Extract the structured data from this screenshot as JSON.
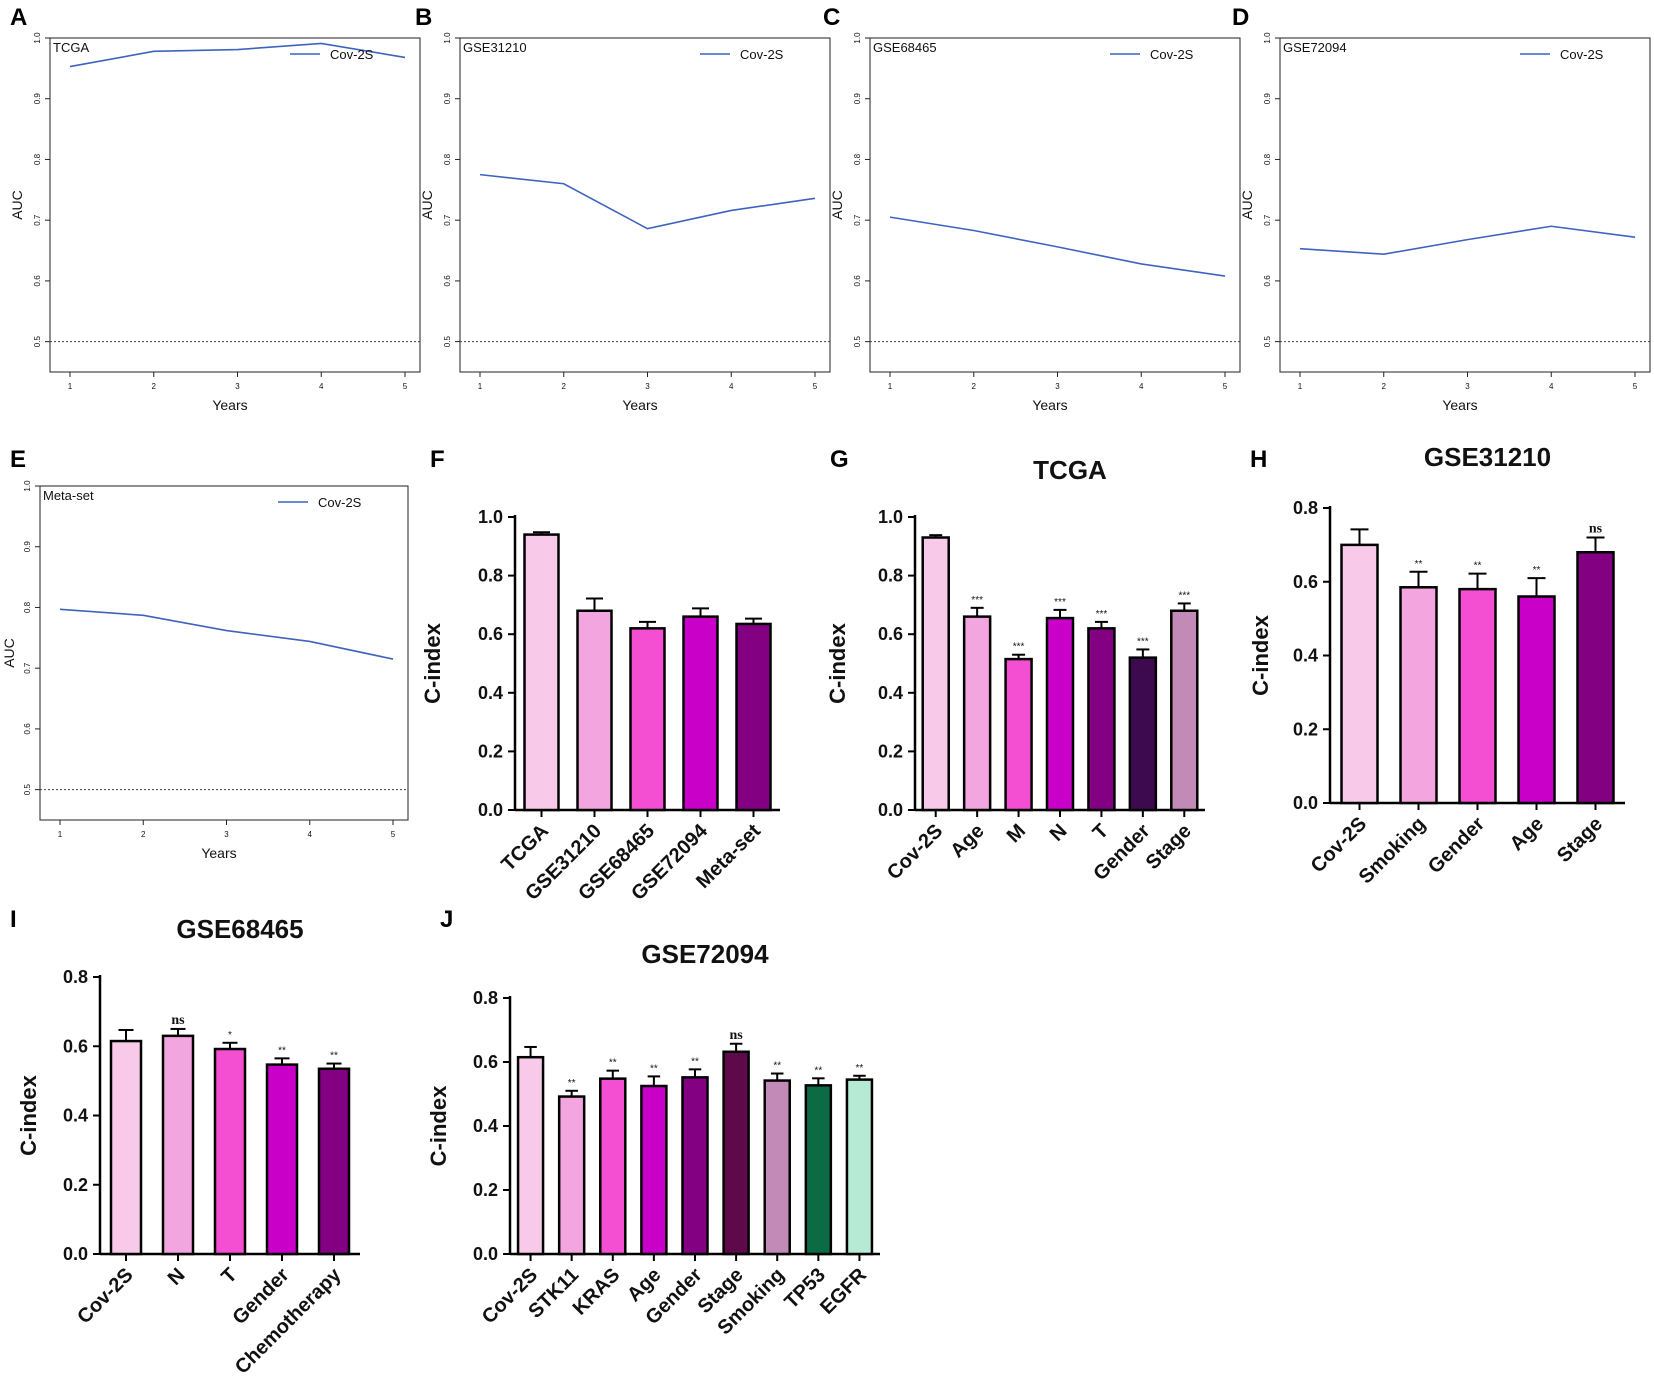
{
  "chart_data": [
    {
      "panel": "A",
      "type": "line",
      "title": "TCGA",
      "xlabel": "Years",
      "ylabel": "AUC",
      "x": [
        1,
        2,
        3,
        4,
        5
      ],
      "x_ticks": [
        "1",
        "2",
        "3",
        "4",
        "5"
      ],
      "y_ticks": [
        "0.5",
        "0.6",
        "0.7",
        "0.8",
        "0.9",
        "1.0"
      ],
      "ylim": [
        0.45,
        1.0
      ],
      "series": [
        {
          "name": "Cov-2S",
          "color": "#3e63bf",
          "values": [
            0.953,
            0.978,
            0.981,
            0.991,
            0.968
          ]
        }
      ],
      "reference_line": 0.5,
      "legend": "Cov-2S",
      "legend_position": "top-right"
    },
    {
      "panel": "B",
      "type": "line",
      "title": "GSE31210",
      "xlabel": "Years",
      "ylabel": "AUC",
      "x": [
        1,
        2,
        3,
        4,
        5
      ],
      "x_ticks": [
        "1",
        "2",
        "3",
        "4",
        "5"
      ],
      "y_ticks": [
        "0.5",
        "0.6",
        "0.7",
        "0.8",
        "0.9",
        "1.0"
      ],
      "ylim": [
        0.45,
        1.0
      ],
      "series": [
        {
          "name": "Cov-2S",
          "color": "#3e63bf",
          "values": [
            0.775,
            0.76,
            0.686,
            0.716,
            0.736
          ]
        }
      ],
      "reference_line": 0.5,
      "legend": "Cov-2S",
      "legend_position": "top-right"
    },
    {
      "panel": "C",
      "type": "line",
      "title": "GSE68465",
      "xlabel": "Years",
      "ylabel": "AUC",
      "x": [
        1,
        2,
        3,
        4,
        5
      ],
      "x_ticks": [
        "1",
        "2",
        "3",
        "4",
        "5"
      ],
      "y_ticks": [
        "0.5",
        "0.6",
        "0.7",
        "0.8",
        "0.9",
        "1.0"
      ],
      "ylim": [
        0.45,
        1.0
      ],
      "series": [
        {
          "name": "Cov-2S",
          "color": "#3e63bf",
          "values": [
            0.705,
            0.683,
            0.656,
            0.628,
            0.608
          ]
        }
      ],
      "reference_line": 0.5,
      "legend": "Cov-2S",
      "legend_position": "top-right"
    },
    {
      "panel": "D",
      "type": "line",
      "title": "GSE72094",
      "xlabel": "Years",
      "ylabel": "AUC",
      "x": [
        1,
        2,
        3,
        4,
        5
      ],
      "x_ticks": [
        "1",
        "2",
        "3",
        "4",
        "5"
      ],
      "y_ticks": [
        "0.5",
        "0.6",
        "0.7",
        "0.8",
        "0.9",
        "1.0"
      ],
      "ylim": [
        0.45,
        1.0
      ],
      "series": [
        {
          "name": "Cov-2S",
          "color": "#3e63bf",
          "values": [
            0.653,
            0.644,
            0.668,
            0.69,
            0.672
          ]
        }
      ],
      "reference_line": 0.5,
      "legend": "Cov-2S",
      "legend_position": "top-right"
    },
    {
      "panel": "E",
      "type": "line",
      "title": "Meta-set",
      "xlabel": "Years",
      "ylabel": "AUC",
      "x": [
        1,
        2,
        3,
        4,
        5
      ],
      "x_ticks": [
        "1",
        "2",
        "3",
        "4",
        "5"
      ],
      "y_ticks": [
        "0.5",
        "0.6",
        "0.7",
        "0.8",
        "0.9",
        "1.0"
      ],
      "ylim": [
        0.45,
        1.0
      ],
      "series": [
        {
          "name": "Cov-2S",
          "color": "#3e63bf",
          "values": [
            0.797,
            0.787,
            0.762,
            0.744,
            0.715
          ]
        }
      ],
      "reference_line": 0.5,
      "legend": "Cov-2S",
      "legend_position": "top-right"
    },
    {
      "panel": "F",
      "type": "bar",
      "title": "",
      "ylabel": "C-index",
      "ylim": [
        0,
        1.0
      ],
      "y_ticks": [
        "0.0",
        "0.2",
        "0.4",
        "0.6",
        "0.8",
        "1.0"
      ],
      "categories": [
        "TCGA",
        "GSE31210",
        "GSE68465",
        "GSE72094",
        "Meta-set"
      ],
      "values": [
        0.94,
        0.68,
        0.62,
        0.66,
        0.635
      ],
      "errors": [
        0.008,
        0.042,
        0.022,
        0.028,
        0.018
      ],
      "significance": [
        "",
        "",
        "",
        "",
        ""
      ],
      "colors": [
        "#f9c9ea",
        "#f2a5de",
        "#f44fd2",
        "#c800c8",
        "#830083"
      ]
    },
    {
      "panel": "G",
      "type": "bar",
      "title": "TCGA",
      "ylabel": "C-index",
      "ylim": [
        0,
        1.0
      ],
      "y_ticks": [
        "0.0",
        "0.2",
        "0.4",
        "0.6",
        "0.8",
        "1.0"
      ],
      "categories": [
        "Cov-2S",
        "Age",
        "M",
        "N",
        "T",
        "Gender",
        "Stage"
      ],
      "values": [
        0.93,
        0.66,
        0.515,
        0.655,
        0.62,
        0.52,
        0.68
      ],
      "errors": [
        0.008,
        0.03,
        0.015,
        0.028,
        0.022,
        0.028,
        0.025
      ],
      "significance": [
        "",
        "***",
        "***",
        "***",
        "***",
        "***",
        "***"
      ],
      "colors": [
        "#f9c9ea",
        "#f2a5de",
        "#f44fd2",
        "#c800c8",
        "#830083",
        "#3e0a4f",
        "#c28ab7"
      ]
    },
    {
      "panel": "H",
      "type": "bar",
      "title": "GSE31210",
      "ylabel": "C-index",
      "ylim": [
        0,
        0.8
      ],
      "y_ticks": [
        "0.0",
        "0.2",
        "0.4",
        "0.6",
        "0.8"
      ],
      "categories": [
        "Cov-2S",
        "Smoking",
        "Gender",
        "Age",
        "Stage"
      ],
      "values": [
        0.7,
        0.585,
        0.58,
        0.56,
        0.68
      ],
      "errors": [
        0.042,
        0.042,
        0.042,
        0.05,
        0.04
      ],
      "significance": [
        "",
        "**",
        "**",
        "**",
        "ns"
      ],
      "colors": [
        "#f9c9ea",
        "#f2a5de",
        "#f44fd2",
        "#c800c8",
        "#830083"
      ]
    },
    {
      "panel": "I",
      "type": "bar",
      "title": "GSE68465",
      "ylabel": "C-index",
      "ylim": [
        0,
        0.8
      ],
      "y_ticks": [
        "0.0",
        "0.2",
        "0.4",
        "0.6",
        "0.8"
      ],
      "categories": [
        "Cov-2S",
        "N",
        "T",
        "Gender",
        "Chemotherapy"
      ],
      "values": [
        0.615,
        0.63,
        0.592,
        0.547,
        0.535
      ],
      "errors": [
        0.032,
        0.02,
        0.018,
        0.018,
        0.015
      ],
      "significance": [
        "",
        "ns",
        "*",
        "**",
        "**"
      ],
      "colors": [
        "#f9c9ea",
        "#f2a5de",
        "#f44fd2",
        "#c800c8",
        "#830083"
      ]
    },
    {
      "panel": "J",
      "type": "bar",
      "title": "GSE72094",
      "ylabel": "C-index",
      "ylim": [
        0,
        0.8
      ],
      "y_ticks": [
        "0.0",
        "0.2",
        "0.4",
        "0.6",
        "0.8"
      ],
      "categories": [
        "Cov-2S",
        "STK11",
        "KRAS",
        "Age",
        "Gender",
        "Stage",
        "Smoking",
        "TP53",
        "EGFR"
      ],
      "values": [
        0.615,
        0.492,
        0.548,
        0.525,
        0.552,
        0.632,
        0.542,
        0.527,
        0.545
      ],
      "errors": [
        0.032,
        0.018,
        0.025,
        0.03,
        0.025,
        0.025,
        0.022,
        0.022,
        0.012
      ],
      "significance": [
        "",
        "**",
        "**",
        "**",
        "**",
        "ns",
        "**",
        "**",
        "**"
      ],
      "colors": [
        "#f9c9ea",
        "#f2a5de",
        "#f44fd2",
        "#c800c8",
        "#830083",
        "#5e0a4a",
        "#c28ab7",
        "#0b6b45",
        "#b6ead4"
      ]
    }
  ]
}
